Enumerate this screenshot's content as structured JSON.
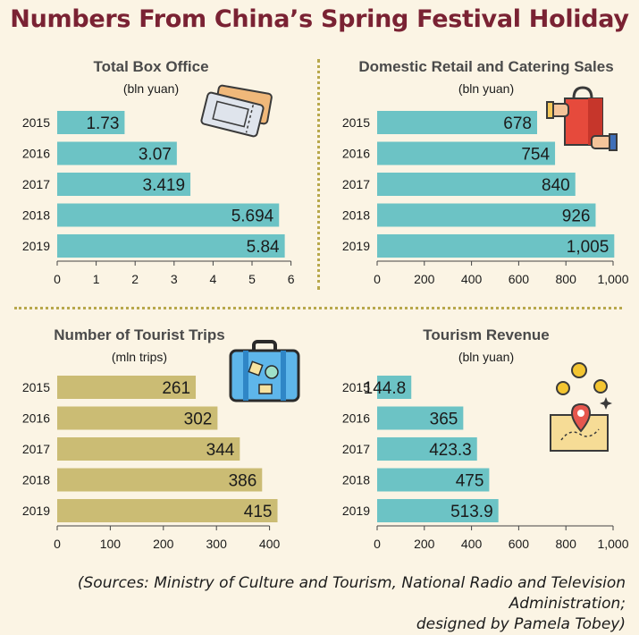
{
  "title": "Numbers From China’s Spring Festival Holiday",
  "colors": {
    "title": "#7a2233",
    "teal": "#6cc3c5",
    "khaki": "#cbbc74",
    "divider": "#b8a84c",
    "text": "#1b1b1b",
    "axis": "#444444"
  },
  "chart_data": [
    {
      "type": "bar",
      "orientation": "horizontal",
      "title": "Total Box Office",
      "subtitle": "(bln yuan)",
      "categories": [
        "2015",
        "2016",
        "2017",
        "2018",
        "2019"
      ],
      "values": [
        1.73,
        3.07,
        3.419,
        5.694,
        5.84
      ],
      "value_labels": [
        "1.73",
        "3.07",
        "3.419",
        "5.694",
        "5.84"
      ],
      "xlim": [
        0,
        6
      ],
      "ticks": [
        0,
        1,
        2,
        3,
        4,
        5,
        6
      ],
      "tick_labels": [
        "0",
        "1",
        "2",
        "3",
        "4",
        "5",
        "6"
      ],
      "color": "#6cc3c5",
      "icon": "movie-tickets-icon"
    },
    {
      "type": "bar",
      "orientation": "horizontal",
      "title": "Domestic Retail and Catering Sales",
      "subtitle": "(bln yuan)",
      "categories": [
        "2015",
        "2016",
        "2017",
        "2018",
        "2019"
      ],
      "values": [
        678,
        754,
        840,
        926,
        1005
      ],
      "value_labels": [
        "678",
        "754",
        "840",
        "926",
        "1,005"
      ],
      "xlim": [
        0,
        1000
      ],
      "ticks": [
        0,
        200,
        400,
        600,
        800,
        1000
      ],
      "tick_labels": [
        "0",
        "200",
        "400",
        "600",
        "800",
        "1,000"
      ],
      "color": "#6cc3c5",
      "icon": "shopping-bag-icon"
    },
    {
      "type": "bar",
      "orientation": "horizontal",
      "title": "Number of Tourist Trips",
      "subtitle": "(mln trips)",
      "categories": [
        "2015",
        "2016",
        "2017",
        "2018",
        "2019"
      ],
      "values": [
        261,
        302,
        344,
        386,
        415
      ],
      "value_labels": [
        "261",
        "302",
        "344",
        "386",
        "415"
      ],
      "xlim": [
        0,
        400
      ],
      "ticks": [
        0,
        100,
        200,
        300,
        400
      ],
      "tick_labels": [
        "0",
        "100",
        "200",
        "300",
        "400"
      ],
      "color": "#cbbc74",
      "icon": "suitcase-icon"
    },
    {
      "type": "bar",
      "orientation": "horizontal",
      "title": "Tourism Revenue",
      "subtitle": "(bln yuan)",
      "categories": [
        "2015",
        "2016",
        "2017",
        "2018",
        "2019"
      ],
      "values": [
        144.8,
        365,
        423.3,
        475,
        513.9
      ],
      "value_labels": [
        "144.8",
        "365",
        "423.3",
        "475",
        "513.9"
      ],
      "xlim": [
        0,
        1000
      ],
      "ticks": [
        0,
        200,
        400,
        600,
        800,
        1000
      ],
      "tick_labels": [
        "0",
        "200",
        "400",
        "600",
        "800",
        "1,000"
      ],
      "color": "#6cc3c5",
      "icon": "map-and-coins-icon"
    }
  ],
  "sources_line1": "(Sources: Ministry of Culture and Tourism,  National Radio and Television Administration;",
  "sources_line2": "designed by Pamela Tobey)"
}
